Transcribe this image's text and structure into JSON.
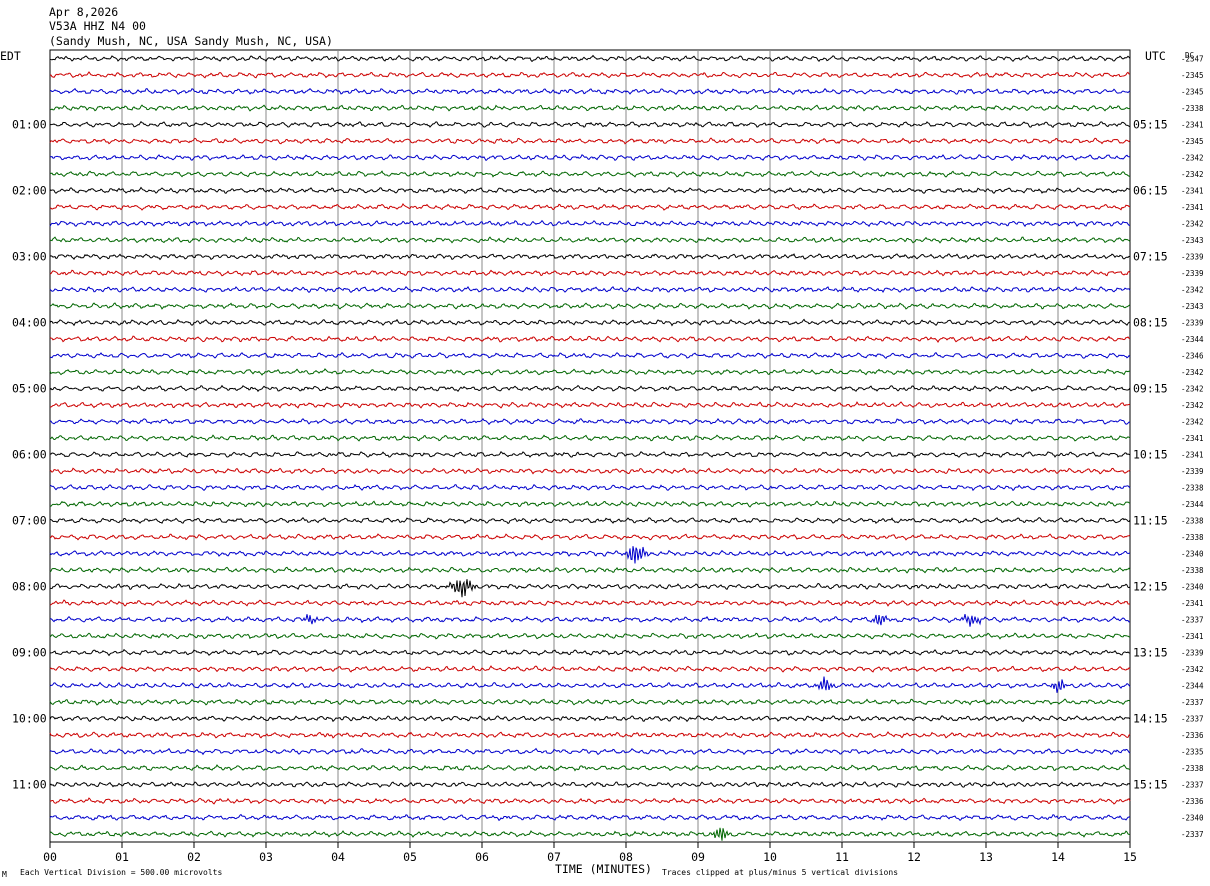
{
  "header": {
    "date": "Apr 8,2026",
    "station": "V53A HHZ N4 00",
    "location": "(Sandy Mush, NC, USA Sandy Mush, NC, USA)"
  },
  "left_tz": "EDT",
  "right_tz": "UTC",
  "dc_label": "DC",
  "footer": {
    "scale_note": "Each Vertical Division =  500.00 microvolts",
    "clip_note": "Traces clipped at plus/minus 5 vertical divisions",
    "corner_mark": "M"
  },
  "chart_data": {
    "type": "helicorder",
    "title": "V53A HHZ N4 00",
    "xlabel": "TIME (MINUTES)",
    "ylabel": "",
    "x_range": [
      0,
      15
    ],
    "x_ticks": [
      "00",
      "01",
      "02",
      "03",
      "04",
      "05",
      "06",
      "07",
      "08",
      "09",
      "10",
      "11",
      "12",
      "13",
      "14",
      "15"
    ],
    "rows_per_hour": 4,
    "row_count": 48,
    "trace_colors": [
      "#000000",
      "#cc0000",
      "#0000cc",
      "#006600"
    ],
    "left_labels": [
      "01:00",
      "02:00",
      "03:00",
      "04:00",
      "05:00",
      "06:00",
      "07:00",
      "08:00",
      "09:00",
      "10:00",
      "11:00"
    ],
    "right_labels": [
      "05:15",
      "06:15",
      "07:15",
      "08:15",
      "09:15",
      "10:15",
      "11:15",
      "12:15",
      "13:15",
      "14:15",
      "15:15"
    ],
    "dc_values": [
      "2347",
      "2345",
      "2345",
      "2338",
      "2341",
      "2345",
      "2342",
      "2342",
      "2341",
      "2341",
      "2342",
      "2343",
      "2339",
      "2339",
      "2342",
      "2343",
      "2339",
      "2344",
      "2346",
      "2342",
      "2342",
      "2342",
      "2342",
      "2341",
      "2341",
      "2339",
      "2338",
      "2344",
      "2338",
      "2338",
      "2340",
      "2338",
      "2340",
      "2341",
      "2337",
      "2341",
      "2339",
      "2342",
      "2344",
      "2337",
      "2337",
      "2336",
      "2335",
      "2338",
      "2337",
      "2336",
      "2340",
      "2337"
    ],
    "events": [
      {
        "row": 30,
        "minute": 8.05,
        "amplitude": 10,
        "duration_min": 0.3
      },
      {
        "row": 32,
        "minute": 5.6,
        "amplitude": 10,
        "duration_min": 0.35
      },
      {
        "row": 34,
        "minute": 3.55,
        "amplitude": 5,
        "duration_min": 0.2
      },
      {
        "row": 34,
        "minute": 11.45,
        "amplitude": 6,
        "duration_min": 0.25
      },
      {
        "row": 34,
        "minute": 12.7,
        "amplitude": 5,
        "duration_min": 0.3
      },
      {
        "row": 38,
        "minute": 10.7,
        "amplitude": 9,
        "duration_min": 0.2
      },
      {
        "row": 38,
        "minute": 13.95,
        "amplitude": 7,
        "duration_min": 0.2
      },
      {
        "row": 47,
        "minute": 9.25,
        "amplitude": 8,
        "duration_min": 0.2
      }
    ]
  }
}
